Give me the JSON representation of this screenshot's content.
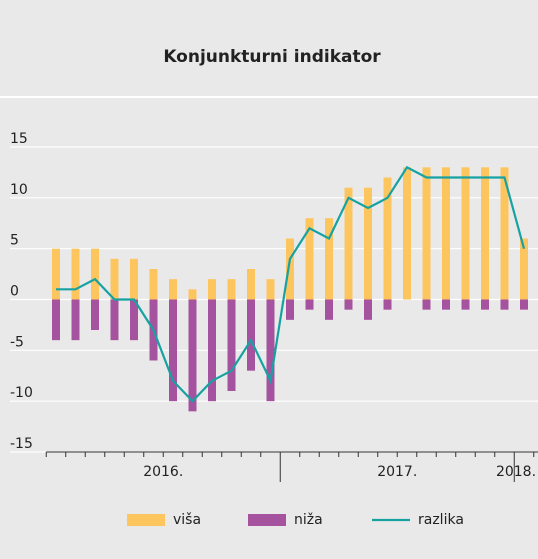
{
  "chart_data": {
    "type": "bar_line",
    "title": "Konjunkturni indikator",
    "categories": [
      "2016.",
      null,
      null,
      null,
      null,
      null,
      null,
      null,
      null,
      null,
      null,
      null,
      "2017.",
      null,
      null,
      null,
      null,
      null,
      null,
      null,
      null,
      null,
      null,
      null,
      "2018."
    ],
    "series": [
      {
        "name": "viša",
        "kind": "bar",
        "color": "#fdc55e",
        "values": [
          5,
          5,
          5,
          4,
          4,
          3,
          2,
          1,
          2,
          2,
          3,
          2,
          6,
          8,
          8,
          11,
          11,
          12,
          13,
          13,
          13,
          13,
          13,
          13,
          6
        ]
      },
      {
        "name": "niža",
        "kind": "bar",
        "color": "#a5529f",
        "values": [
          -4,
          -4,
          -3,
          -4,
          -4,
          -6,
          -10,
          -11,
          -10,
          -9,
          -7,
          -10,
          -2,
          -1,
          -2,
          -1,
          -2,
          -1,
          0,
          -1,
          -1,
          -1,
          -1,
          -1,
          -1
        ]
      },
      {
        "name": "razlika",
        "kind": "line",
        "color": "#17a2a2",
        "values": [
          1,
          1,
          2,
          0,
          0,
          -3,
          -8,
          -10,
          -8,
          -7,
          -4,
          -8,
          4,
          7,
          6,
          10,
          9,
          10,
          13,
          12,
          12,
          12,
          12,
          12,
          5
        ]
      }
    ],
    "ylim": [
      -15,
      15
    ],
    "yticks": [
      -15,
      -10,
      -5,
      0,
      5,
      10,
      15
    ],
    "grid": true,
    "legend": "bottom"
  }
}
